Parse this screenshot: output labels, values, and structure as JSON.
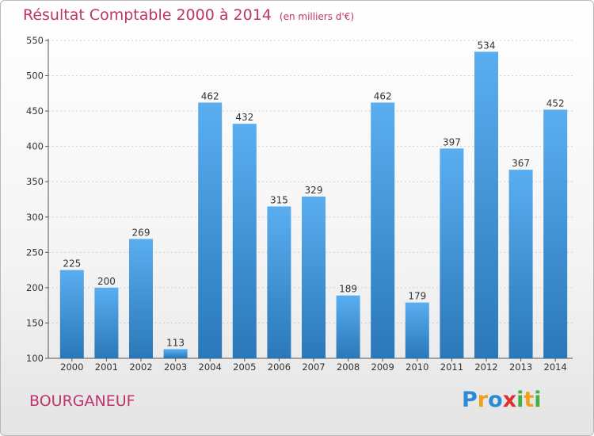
{
  "chart_data": {
    "type": "bar",
    "title": "Résultat Comptable 2000 à 2014",
    "subtitle": "(en milliers d'€)",
    "categories": [
      "2000",
      "2001",
      "2002",
      "2003",
      "2004",
      "2005",
      "2006",
      "2007",
      "2008",
      "2009",
      "2010",
      "2011",
      "2012",
      "2013",
      "2014"
    ],
    "values": [
      225,
      200,
      269,
      113,
      462,
      432,
      315,
      329,
      189,
      462,
      179,
      397,
      534,
      367,
      452
    ],
    "ylim": [
      100,
      550
    ],
    "yticks": [
      100,
      150,
      200,
      250,
      300,
      350,
      400,
      450,
      500,
      550
    ],
    "grid": true,
    "colors": {
      "bar_light": "#5aaef0",
      "bar_dark": "#2a78b8",
      "text": "#333333"
    }
  },
  "commune": "BOURGANEUF",
  "brand": {
    "letters": [
      "P",
      "r",
      "o",
      "x",
      "i",
      "t",
      "i"
    ],
    "colors": [
      "#2a8bd8",
      "#f0a020",
      "#2a8bd8",
      "#e03030",
      "#40b040",
      "#f0a020",
      "#40b040"
    ]
  },
  "accent_color": "#c0336a"
}
